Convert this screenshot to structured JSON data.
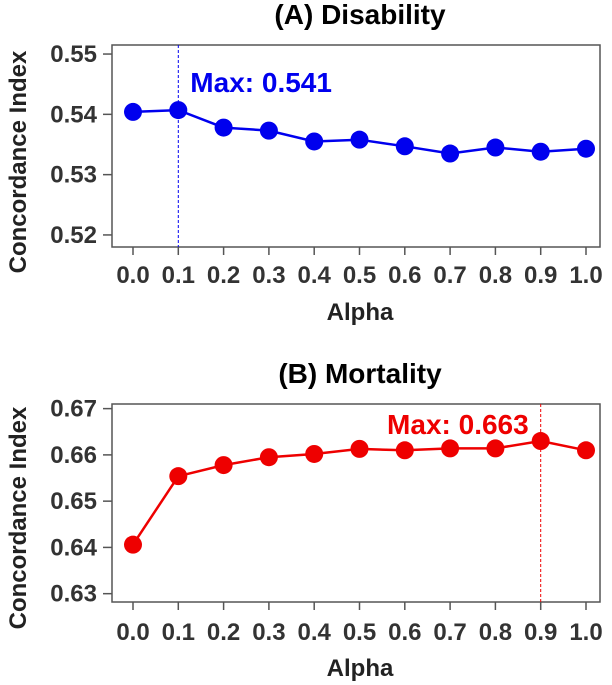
{
  "chart_data": [
    {
      "type": "line",
      "title": "(A) Disability",
      "xlabel": "Alpha",
      "ylabel": "Concordance Index",
      "x": [
        0.0,
        0.1,
        0.2,
        0.3,
        0.4,
        0.5,
        0.6,
        0.7,
        0.8,
        0.9,
        1.0
      ],
      "xtick_labels": [
        "0.0",
        "0.1",
        "0.2",
        "0.3",
        "0.4",
        "0.5",
        "0.6",
        "0.7",
        "0.8",
        "0.9",
        "1.0"
      ],
      "series": [
        {
          "values": [
            0.5404,
            0.5407,
            0.5378,
            0.5373,
            0.5355,
            0.5358,
            0.5347,
            0.5335,
            0.5345,
            0.5338,
            0.5343
          ],
          "color": "#0000ee"
        }
      ],
      "ylim": [
        0.518,
        0.5515
      ],
      "yticks": [
        0.52,
        0.53,
        0.54,
        0.55
      ],
      "ytick_labels": [
        "0.52",
        "0.53",
        "0.54",
        "0.55"
      ],
      "annotation": {
        "text": "Max: 0.541",
        "x": 0.1,
        "y": 0.541,
        "color": "#0000ee"
      },
      "grid": false
    },
    {
      "type": "line",
      "title": "(B) Mortality",
      "xlabel": "Alpha",
      "ylabel": "Concordance Index",
      "x": [
        0.0,
        0.1,
        0.2,
        0.3,
        0.4,
        0.5,
        0.6,
        0.7,
        0.8,
        0.9,
        1.0
      ],
      "xtick_labels": [
        "0.0",
        "0.1",
        "0.2",
        "0.3",
        "0.4",
        "0.5",
        "0.6",
        "0.7",
        "0.8",
        "0.9",
        "1.0"
      ],
      "series": [
        {
          "values": [
            0.6406,
            0.6554,
            0.6578,
            0.6595,
            0.6602,
            0.6613,
            0.661,
            0.6614,
            0.6614,
            0.663,
            0.661
          ],
          "color": "#ee0000"
        }
      ],
      "ylim": [
        0.6282,
        0.671
      ],
      "yticks": [
        0.63,
        0.64,
        0.65,
        0.66,
        0.67
      ],
      "ytick_labels": [
        "0.63",
        "0.64",
        "0.65",
        "0.66",
        "0.67"
      ],
      "annotation": {
        "text": "Max: 0.663",
        "x": 0.9,
        "y": 0.663,
        "color": "#ee0000"
      },
      "grid": false
    }
  ]
}
